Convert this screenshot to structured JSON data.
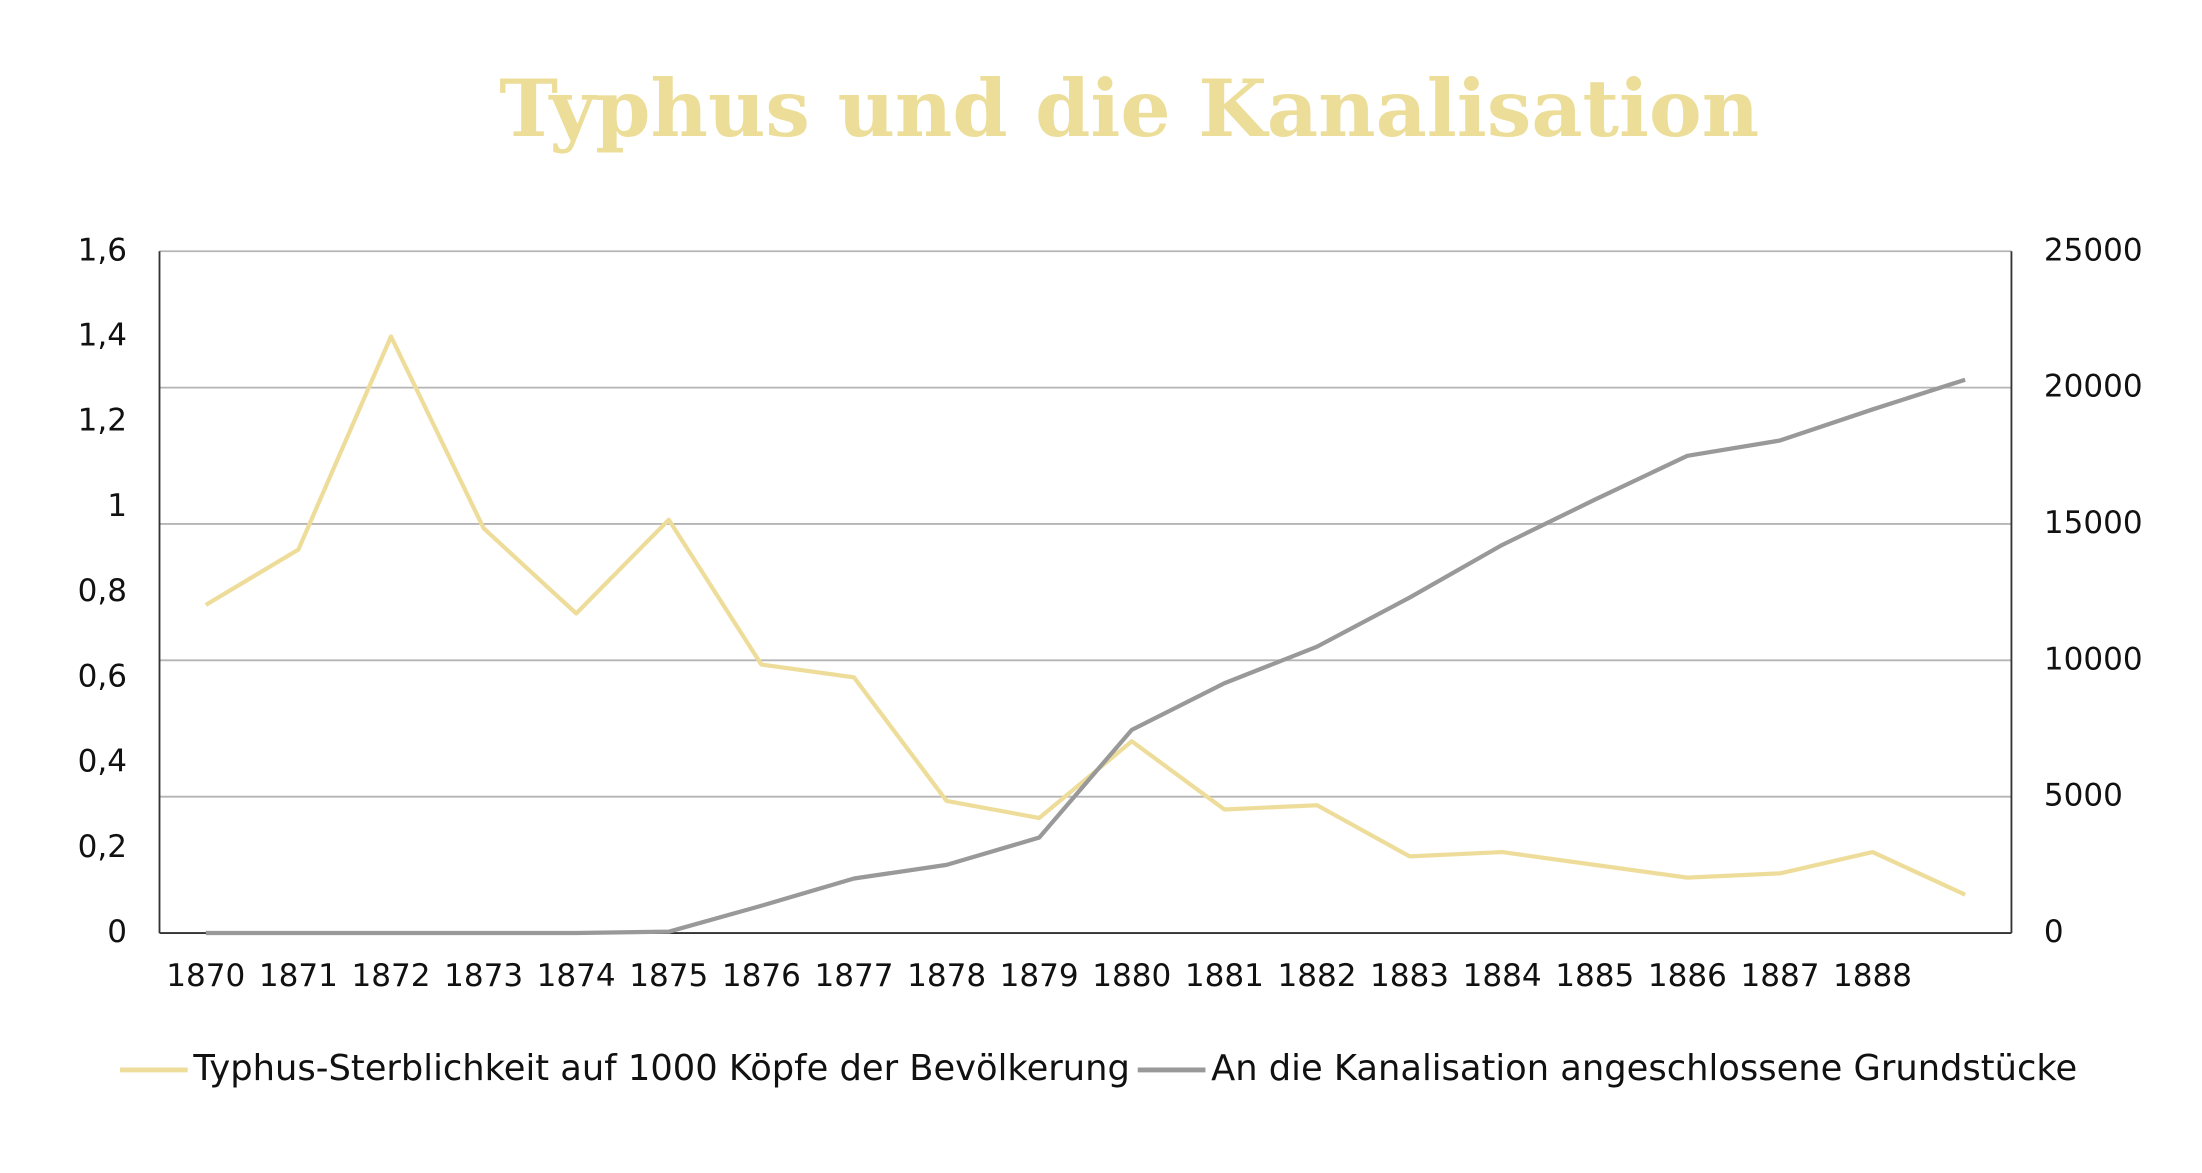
{
  "chart_data": {
    "type": "line",
    "title": "Typhus und die Kanalisation",
    "categories": [
      "1870",
      "1871",
      "1872",
      "1873",
      "1874",
      "1875",
      "1876",
      "1877",
      "1878",
      "1879",
      "1880",
      "1881",
      "1882",
      "1883",
      "1884",
      "1885",
      "1886",
      "1887",
      "1888",
      null
    ],
    "series": [
      {
        "name": "Typhus-Sterblichkeit auf 1000 Köpfe der Bevölkerung",
        "color": "#eedd9a",
        "values": [
          0.77,
          0.9,
          1.4,
          0.95,
          0.75,
          0.97,
          0.63,
          0.6,
          0.31,
          0.27,
          0.45,
          0.29,
          0.3,
          0.18,
          0.19,
          0.16,
          0.13,
          0.14,
          0.19,
          0.09
        ]
      },
      {
        "name": "An die Kanalisation angeschlossene Grundstücke",
        "color": "#999999",
        "axis": "y2",
        "values": [
          0,
          0,
          0,
          0,
          0,
          50,
          1000,
          2000,
          2500,
          3500,
          7450,
          9160,
          10500,
          12300,
          14230,
          15890,
          17500,
          18060,
          19200,
          20290
        ]
      }
    ],
    "ylim": [
      0,
      1.6
    ],
    "yticks": [
      0,
      {
        "value": 0.2,
        "label": "0,2"
      },
      {
        "value": 0.4,
        "label": "0,4"
      },
      {
        "value": 0.6,
        "label": "0,6"
      },
      {
        "value": 0.8,
        "label": "0,8"
      },
      1,
      {
        "value": 1.2,
        "label": "1,2"
      },
      {
        "value": 1.4,
        "label": "1,4"
      },
      {
        "value": 1.6,
        "label": "1,6"
      }
    ],
    "y2lim": [
      0,
      25000
    ],
    "y2ticks": [
      0,
      5000,
      10000,
      15000,
      20000,
      25000
    ],
    "grid": true,
    "legend": "bottom"
  }
}
